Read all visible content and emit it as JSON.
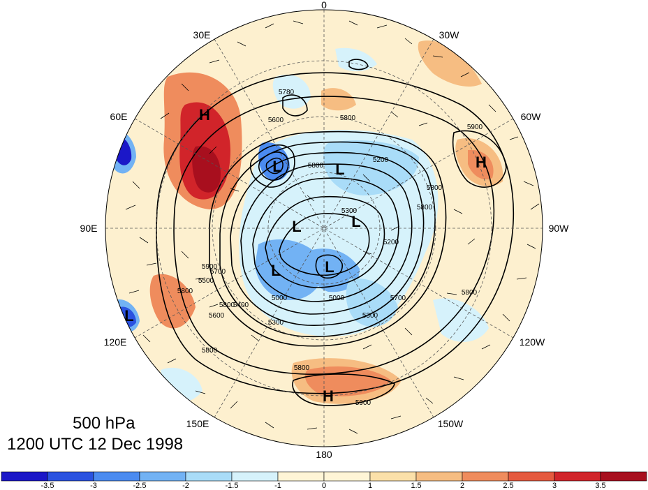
{
  "title": {
    "level": "500 hPa",
    "time": "1200 UTC 12 Dec 1998"
  },
  "longitude_labels": [
    "0",
    "30W",
    "60W",
    "90W",
    "120W",
    "150W",
    "180",
    "150E",
    "120E",
    "90E",
    "60E",
    "30E"
  ],
  "contour_labels": [
    "5800",
    "5800",
    "5900",
    "5800",
    "5700",
    "5800",
    "5900",
    "5800",
    "5900",
    "5800",
    "5600",
    "5200",
    "5300",
    "5200",
    "5300",
    "5000",
    "5000",
    "5400",
    "5600",
    "5500",
    "5800",
    "5800",
    "5700",
    "5300",
    "5780",
    "5800"
  ],
  "pressure_centers": [
    "H",
    "H",
    "H",
    "L",
    "L",
    "L",
    "L",
    "L",
    "L",
    "L"
  ],
  "colorbar": {
    "ticks": [
      "-3.5",
      "-3",
      "-2.5",
      "-2",
      "-1.5",
      "-1",
      "0",
      "1",
      "1.5",
      "2",
      "2.5",
      "3",
      "3.5"
    ],
    "colors": [
      "#1b17c8",
      "#2a52e0",
      "#4b8bf0",
      "#72b2f4",
      "#a9dcf8",
      "#d6f2fb",
      "#fff5d6",
      "#fbe0a9",
      "#f6bd82",
      "#ef8c5d",
      "#e55a3f",
      "#d1242a",
      "#a80f1e"
    ]
  }
}
